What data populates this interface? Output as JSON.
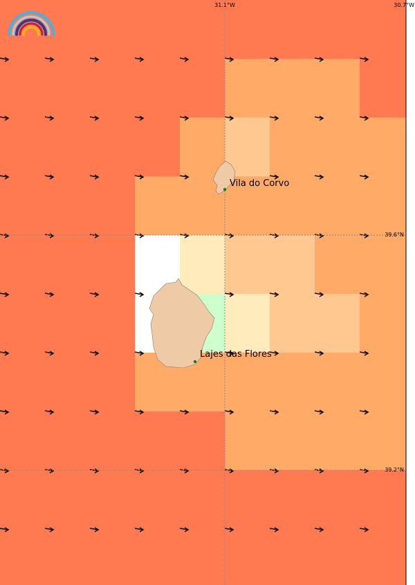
{
  "map": {
    "graticule": {
      "longitudes": [
        "31.1°W",
        "30.7°W"
      ],
      "latitudes": [
        "39.6°N",
        "39.2°N"
      ]
    },
    "places": [
      {
        "name": "Vila do Corvo"
      },
      {
        "name": "Lajes das Flores"
      }
    ]
  }
}
